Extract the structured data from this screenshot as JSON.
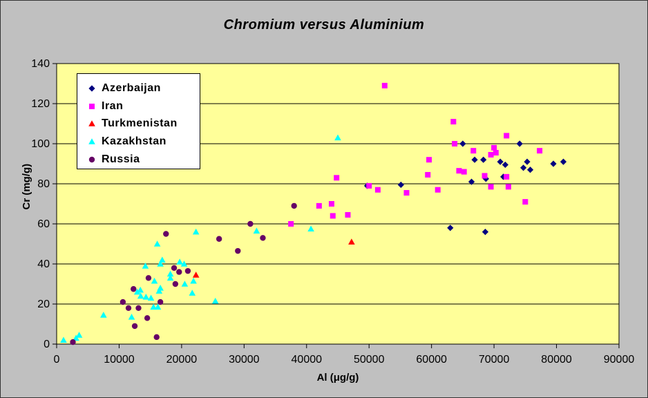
{
  "colors": {
    "page_bg": "#c0c0c0",
    "plot_bg": "#ffff99",
    "axis": "#000000",
    "gridline": "#000000",
    "legend_bg": "#ffffff",
    "legend_border": "#000000"
  },
  "chart_data": {
    "type": "scatter",
    "title": "Chromium versus Aluminium",
    "xlabel": "Al (μg/g)",
    "ylabel": "Cr (mg/g)",
    "xlim": [
      0,
      90000
    ],
    "ylim": [
      0,
      140
    ],
    "xtick_values": [
      0,
      10000,
      20000,
      30000,
      40000,
      50000,
      60000,
      70000,
      80000,
      90000
    ],
    "xtick_labels": [
      "0",
      "10000",
      "20000",
      "30000",
      "40000",
      "50000",
      "60000",
      "70000",
      "80000",
      "90000"
    ],
    "ytick_values": [
      0,
      20,
      40,
      60,
      80,
      100,
      120,
      140
    ],
    "ytick_labels": [
      "0",
      "20",
      "40",
      "60",
      "80",
      "100",
      "120",
      "140"
    ],
    "grid": "horizontal",
    "legend_position": "upper-left-inside",
    "series": [
      {
        "name": "Azerbaijan",
        "marker": "diamond",
        "color": "#000080",
        "points": [
          [
            49700,
            79
          ],
          [
            55100,
            79.5
          ],
          [
            63000,
            58
          ],
          [
            65000,
            100
          ],
          [
            66400,
            81
          ],
          [
            66900,
            92
          ],
          [
            68300,
            92
          ],
          [
            68600,
            56
          ],
          [
            68700,
            82.5
          ],
          [
            71000,
            91
          ],
          [
            71500,
            83.5
          ],
          [
            71800,
            89.5
          ],
          [
            74100,
            100
          ],
          [
            74700,
            88
          ],
          [
            75300,
            91
          ],
          [
            75800,
            87
          ],
          [
            79500,
            90
          ],
          [
            81100,
            91
          ]
        ]
      },
      {
        "name": "Iran",
        "marker": "square",
        "color": "#ff00ff",
        "points": [
          [
            37500,
            60
          ],
          [
            42000,
            69
          ],
          [
            44000,
            70
          ],
          [
            44200,
            64
          ],
          [
            44800,
            83
          ],
          [
            46600,
            64.5
          ],
          [
            50000,
            79
          ],
          [
            51400,
            77
          ],
          [
            52500,
            129
          ],
          [
            56000,
            75.5
          ],
          [
            59400,
            84.5
          ],
          [
            59600,
            92
          ],
          [
            61000,
            77
          ],
          [
            63500,
            111
          ],
          [
            63700,
            100
          ],
          [
            64400,
            86.5
          ],
          [
            65200,
            86
          ],
          [
            66700,
            96.5
          ],
          [
            68500,
            84
          ],
          [
            69500,
            78.5
          ],
          [
            69500,
            94.5
          ],
          [
            70000,
            98
          ],
          [
            70300,
            95.5
          ],
          [
            72000,
            83.5
          ],
          [
            72000,
            104
          ],
          [
            72300,
            78.5
          ],
          [
            75000,
            71
          ],
          [
            77300,
            96.5
          ]
        ]
      },
      {
        "name": "Turkmenistan",
        "marker": "triangle",
        "color": "#ff0000",
        "points": [
          [
            22300,
            34.5
          ],
          [
            47200,
            51
          ]
        ]
      },
      {
        "name": "Kazakhstan",
        "marker": "triangle",
        "color": "#00ffff",
        "points": [
          [
            1100,
            2
          ],
          [
            3100,
            3
          ],
          [
            3600,
            4.5
          ],
          [
            7500,
            14.5
          ],
          [
            12000,
            13.5
          ],
          [
            12900,
            26
          ],
          [
            13400,
            27
          ],
          [
            13450,
            24
          ],
          [
            14200,
            39
          ],
          [
            14300,
            23.5
          ],
          [
            15100,
            23
          ],
          [
            15500,
            18.5
          ],
          [
            15650,
            31.5
          ],
          [
            16100,
            50
          ],
          [
            16200,
            18.5
          ],
          [
            16400,
            26.5
          ],
          [
            16600,
            28
          ],
          [
            16600,
            40
          ],
          [
            16900,
            42
          ],
          [
            18200,
            33
          ],
          [
            18200,
            35
          ],
          [
            19700,
            41
          ],
          [
            20400,
            40
          ],
          [
            20500,
            30
          ],
          [
            21700,
            25.5
          ],
          [
            21900,
            31.5
          ],
          [
            22300,
            56
          ],
          [
            25400,
            21.5
          ],
          [
            32000,
            56.5
          ],
          [
            40700,
            57.5
          ],
          [
            45000,
            103
          ]
        ]
      },
      {
        "name": "Russia",
        "marker": "circle",
        "color": "#660066",
        "points": [
          [
            2600,
            1
          ],
          [
            10600,
            21
          ],
          [
            11500,
            18
          ],
          [
            12300,
            27.5
          ],
          [
            12500,
            9
          ],
          [
            13100,
            18
          ],
          [
            14500,
            13
          ],
          [
            14700,
            33
          ],
          [
            16000,
            3.5
          ],
          [
            16600,
            21
          ],
          [
            17500,
            55
          ],
          [
            18800,
            38
          ],
          [
            19000,
            30
          ],
          [
            19600,
            36
          ],
          [
            21000,
            36.5
          ],
          [
            26000,
            52.5
          ],
          [
            29000,
            46.5
          ],
          [
            31000,
            60
          ],
          [
            33000,
            53
          ],
          [
            38000,
            69
          ]
        ]
      }
    ]
  }
}
